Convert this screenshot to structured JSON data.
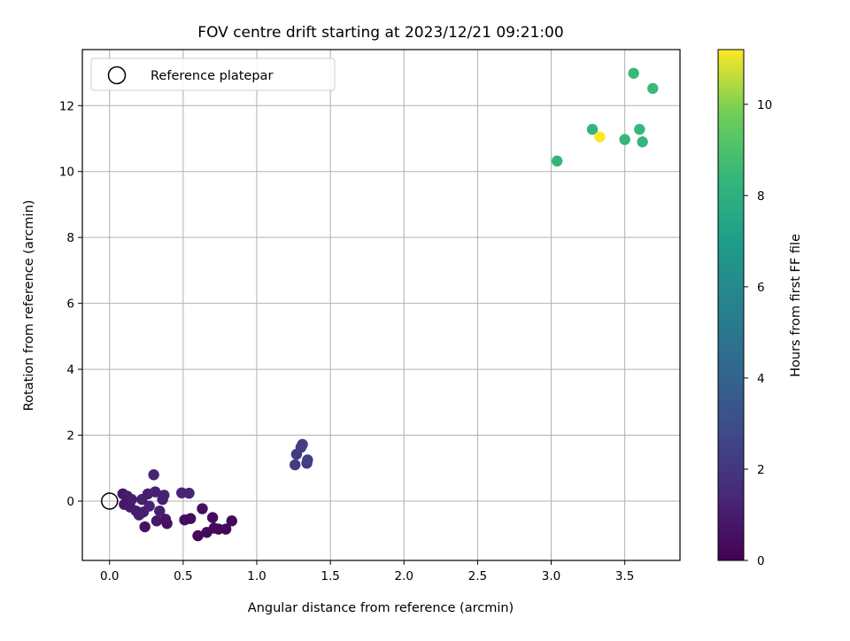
{
  "chart_data": {
    "type": "scatter",
    "title": "FOV centre drift starting at 2023/12/21 09:21:00",
    "xlabel": "Angular distance from reference (arcmin)",
    "ylabel": "Rotation from reference (arcmin)",
    "xlim": [
      -0.185,
      3.875
    ],
    "ylim": [
      -1.8,
      13.7
    ],
    "xticks": [
      0.0,
      0.5,
      1.0,
      1.5,
      2.0,
      2.5,
      3.0,
      3.5
    ],
    "xtick_labels": [
      "0.0",
      "0.5",
      "1.0",
      "1.5",
      "2.0",
      "2.5",
      "3.0",
      "3.5"
    ],
    "yticks": [
      0,
      2,
      4,
      6,
      8,
      10,
      12
    ],
    "ytick_labels": [
      "0",
      "2",
      "4",
      "6",
      "8",
      "10",
      "12"
    ],
    "grid": true,
    "legend": {
      "placement": "upper-left",
      "entries": [
        {
          "label": "Reference platepar",
          "marker": "open-circle"
        }
      ]
    },
    "reference_point": {
      "x": 0.0,
      "y": 0.0
    },
    "colorbar": {
      "label": "Hours from first FF file",
      "colormap": "viridis",
      "range": [
        0,
        11.2
      ],
      "ticks": [
        0,
        2,
        4,
        6,
        8,
        10
      ],
      "tick_labels": [
        "0",
        "2",
        "4",
        "6",
        "8",
        "10"
      ]
    },
    "series": [
      {
        "points": [
          {
            "x": 0.09,
            "y": 0.22,
            "c": 0.8
          },
          {
            "x": 0.12,
            "y": 0.15,
            "c": 0.9
          },
          {
            "x": 0.15,
            "y": 0.05,
            "c": 1.0
          },
          {
            "x": 0.1,
            "y": -0.1,
            "c": 0.8
          },
          {
            "x": 0.14,
            "y": -0.18,
            "c": 0.9
          },
          {
            "x": 0.18,
            "y": -0.3,
            "c": 1.0
          },
          {
            "x": 0.2,
            "y": -0.42,
            "c": 1.1
          },
          {
            "x": 0.23,
            "y": -0.33,
            "c": 1.0
          },
          {
            "x": 0.22,
            "y": 0.05,
            "c": 1.1
          },
          {
            "x": 0.26,
            "y": 0.22,
            "c": 1.1
          },
          {
            "x": 0.24,
            "y": -0.78,
            "c": 0.6
          },
          {
            "x": 0.27,
            "y": -0.15,
            "c": 1.2
          },
          {
            "x": 0.3,
            "y": 0.8,
            "c": 1.3
          },
          {
            "x": 0.31,
            "y": 0.28,
            "c": 1.2
          },
          {
            "x": 0.32,
            "y": -0.6,
            "c": 0.8
          },
          {
            "x": 0.34,
            "y": -0.3,
            "c": 1.0
          },
          {
            "x": 0.36,
            "y": 0.05,
            "c": 1.1
          },
          {
            "x": 0.37,
            "y": 0.18,
            "c": 1.2
          },
          {
            "x": 0.38,
            "y": -0.55,
            "c": 0.7
          },
          {
            "x": 0.39,
            "y": -0.68,
            "c": 0.6
          },
          {
            "x": 0.49,
            "y": 0.25,
            "c": 1.3
          },
          {
            "x": 0.54,
            "y": 0.24,
            "c": 1.3
          },
          {
            "x": 0.51,
            "y": -0.57,
            "c": 0.5
          },
          {
            "x": 0.55,
            "y": -0.53,
            "c": 0.4
          },
          {
            "x": 0.6,
            "y": -1.05,
            "c": 0.2
          },
          {
            "x": 0.63,
            "y": -0.23,
            "c": 0.5
          },
          {
            "x": 0.66,
            "y": -0.95,
            "c": 0.3
          },
          {
            "x": 0.7,
            "y": -0.5,
            "c": 0.4
          },
          {
            "x": 0.71,
            "y": -0.82,
            "c": 0.3
          },
          {
            "x": 0.74,
            "y": -0.85,
            "c": 0.3
          },
          {
            "x": 0.79,
            "y": -0.85,
            "c": 0.2
          },
          {
            "x": 0.83,
            "y": -0.6,
            "c": 0.3
          },
          {
            "x": 1.26,
            "y": 1.1,
            "c": 2.2
          },
          {
            "x": 1.27,
            "y": 1.42,
            "c": 2.2
          },
          {
            "x": 1.3,
            "y": 1.63,
            "c": 2.3
          },
          {
            "x": 1.31,
            "y": 1.72,
            "c": 2.3
          },
          {
            "x": 1.34,
            "y": 1.15,
            "c": 2.2
          },
          {
            "x": 1.345,
            "y": 1.25,
            "c": 2.3
          },
          {
            "x": 3.04,
            "y": 10.32,
            "c": 8.3
          },
          {
            "x": 3.28,
            "y": 11.28,
            "c": 8.3
          },
          {
            "x": 3.5,
            "y": 10.97,
            "c": 8.4
          },
          {
            "x": 3.56,
            "y": 12.98,
            "c": 8.5
          },
          {
            "x": 3.6,
            "y": 11.28,
            "c": 8.4
          },
          {
            "x": 3.62,
            "y": 10.9,
            "c": 8.4
          },
          {
            "x": 3.69,
            "y": 12.52,
            "c": 8.5
          },
          {
            "x": 3.33,
            "y": 11.05,
            "c": 11.2
          }
        ]
      }
    ]
  }
}
